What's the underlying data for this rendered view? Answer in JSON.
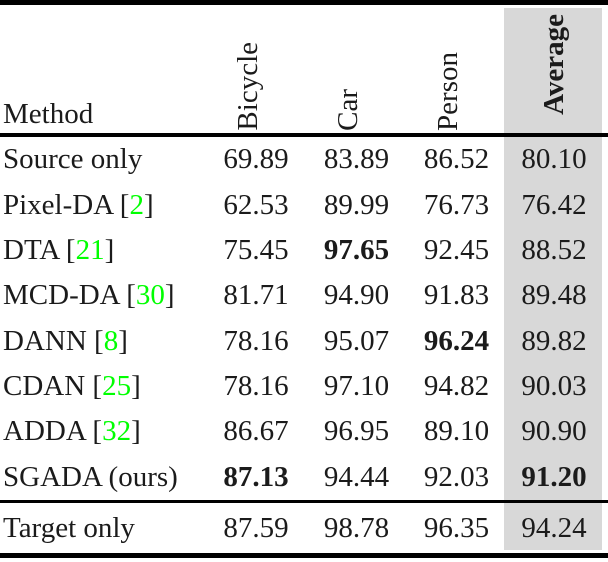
{
  "table": {
    "header": {
      "method_label": "Method",
      "columns": [
        "Bicycle",
        "Car",
        "Person",
        "Average"
      ]
    },
    "rows": [
      {
        "method_pre": "Source only",
        "cite": "",
        "method_post": "",
        "values": [
          "69.89",
          "83.89",
          "86.52",
          "80.10"
        ],
        "bold": [
          false,
          false,
          false,
          false
        ]
      },
      {
        "method_pre": "Pixel-DA [",
        "cite": "2",
        "method_post": "]",
        "values": [
          "62.53",
          "89.99",
          "76.73",
          "76.42"
        ],
        "bold": [
          false,
          false,
          false,
          false
        ]
      },
      {
        "method_pre": "DTA [",
        "cite": "21",
        "method_post": "]",
        "values": [
          "75.45",
          "97.65",
          "92.45",
          "88.52"
        ],
        "bold": [
          false,
          true,
          false,
          false
        ]
      },
      {
        "method_pre": "MCD-DA [",
        "cite": "30",
        "method_post": "]",
        "values": [
          "81.71",
          "94.90",
          "91.83",
          "89.48"
        ],
        "bold": [
          false,
          false,
          false,
          false
        ]
      },
      {
        "method_pre": "DANN [",
        "cite": "8",
        "method_post": "]",
        "values": [
          "78.16",
          "95.07",
          "96.24",
          "89.82"
        ],
        "bold": [
          false,
          false,
          true,
          false
        ]
      },
      {
        "method_pre": "CDAN [",
        "cite": "25",
        "method_post": "]",
        "values": [
          "78.16",
          "97.10",
          "94.82",
          "90.03"
        ],
        "bold": [
          false,
          false,
          false,
          false
        ]
      },
      {
        "method_pre": "ADDA [",
        "cite": "32",
        "method_post": "]",
        "values": [
          "86.67",
          "96.95",
          "89.10",
          "90.90"
        ],
        "bold": [
          false,
          false,
          false,
          false
        ]
      },
      {
        "method_pre": "SGADA (ours)",
        "cite": "",
        "method_post": "",
        "values": [
          "87.13",
          "94.44",
          "92.03",
          "91.20"
        ],
        "bold": [
          true,
          false,
          false,
          true
        ]
      },
      {
        "method_pre": "Target only",
        "cite": "",
        "method_post": "",
        "values": [
          "87.59",
          "98.78",
          "96.35",
          "94.24"
        ],
        "bold": [
          false,
          false,
          false,
          false
        ]
      }
    ],
    "colors": {
      "citation_green": "#00FF00",
      "average_column_gray": "#D8D8D8"
    }
  }
}
